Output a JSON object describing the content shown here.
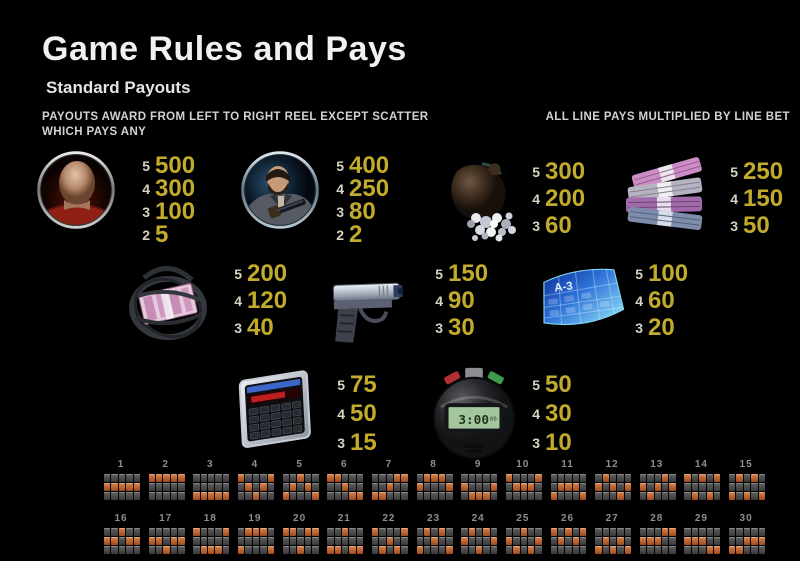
{
  "header": {
    "title": "Game Rules and Pays",
    "subtitle": "Standard Payouts",
    "note_line1": "PAYOUTS AWARD FROM LEFT TO RIGHT REEL EXCEPT SCATTER",
    "note_line2": "WHICH PAYS ANY",
    "note_right": "ALL LINE PAYS MULTIPLIED BY LINE BET"
  },
  "colors": {
    "background": "#000000",
    "value_gold": "#c2ab2b",
    "count_pale": "#d6d3c2",
    "payline_active": "#c4672f",
    "payline_inactive": "#4a4a4a"
  },
  "symbols": [
    {
      "name": "bald-hitman-head",
      "icon": "bald-head-icon",
      "pays": [
        {
          "count": "5",
          "value": "500"
        },
        {
          "count": "4",
          "value": "300"
        },
        {
          "count": "3",
          "value": "100"
        },
        {
          "count": "2",
          "value": "5"
        }
      ]
    },
    {
      "name": "bearded-man-with-gun",
      "icon": "man-with-gun-icon",
      "pays": [
        {
          "count": "5",
          "value": "400"
        },
        {
          "count": "4",
          "value": "250"
        },
        {
          "count": "3",
          "value": "80"
        },
        {
          "count": "2",
          "value": "2"
        }
      ]
    },
    {
      "name": "bag-of-diamonds",
      "icon": "diamond-bag-icon",
      "pays": [
        {
          "count": "5",
          "value": "300"
        },
        {
          "count": "4",
          "value": "200"
        },
        {
          "count": "3",
          "value": "60"
        }
      ]
    },
    {
      "name": "cash-stacks",
      "icon": "cash-stacks-icon",
      "pays": [
        {
          "count": "5",
          "value": "250"
        },
        {
          "count": "4",
          "value": "150"
        },
        {
          "count": "3",
          "value": "50"
        }
      ]
    },
    {
      "name": "wired-money-bundle",
      "icon": "money-bomb-icon",
      "pays": [
        {
          "count": "5",
          "value": "200"
        },
        {
          "count": "4",
          "value": "120"
        },
        {
          "count": "3",
          "value": "40"
        }
      ]
    },
    {
      "name": "pistol",
      "icon": "pistol-icon",
      "pays": [
        {
          "count": "5",
          "value": "150"
        },
        {
          "count": "4",
          "value": "90"
        },
        {
          "count": "3",
          "value": "30"
        }
      ]
    },
    {
      "name": "blue-keycard",
      "icon": "keycard-icon",
      "overlay_text": "A-3",
      "pays": [
        {
          "count": "5",
          "value": "100"
        },
        {
          "count": "4",
          "value": "60"
        },
        {
          "count": "3",
          "value": "20"
        }
      ]
    },
    {
      "name": "calculator",
      "icon": "calculator-icon",
      "pays": [
        {
          "count": "5",
          "value": "75"
        },
        {
          "count": "4",
          "value": "50"
        },
        {
          "count": "3",
          "value": "15"
        }
      ]
    },
    {
      "name": "detonator-timer",
      "icon": "timer-icon",
      "overlay_text": "3:00",
      "pays": [
        {
          "count": "5",
          "value": "50"
        },
        {
          "count": "4",
          "value": "30"
        },
        {
          "count": "3",
          "value": "10"
        }
      ]
    }
  ],
  "paylines": [
    {
      "number": "1",
      "pattern": [
        1,
        1,
        1,
        1,
        1
      ]
    },
    {
      "number": "2",
      "pattern": [
        0,
        0,
        0,
        0,
        0
      ]
    },
    {
      "number": "3",
      "pattern": [
        2,
        2,
        2,
        2,
        2
      ]
    },
    {
      "number": "4",
      "pattern": [
        0,
        1,
        2,
        1,
        0
      ]
    },
    {
      "number": "5",
      "pattern": [
        2,
        1,
        0,
        1,
        2
      ]
    },
    {
      "number": "6",
      "pattern": [
        0,
        0,
        1,
        2,
        2
      ]
    },
    {
      "number": "7",
      "pattern": [
        2,
        2,
        1,
        0,
        0
      ]
    },
    {
      "number": "8",
      "pattern": [
        1,
        0,
        0,
        0,
        1
      ]
    },
    {
      "number": "9",
      "pattern": [
        1,
        2,
        2,
        2,
        1
      ]
    },
    {
      "number": "10",
      "pattern": [
        0,
        1,
        1,
        1,
        0
      ]
    },
    {
      "number": "11",
      "pattern": [
        2,
        1,
        1,
        1,
        2
      ]
    },
    {
      "number": "12",
      "pattern": [
        1,
        0,
        1,
        2,
        1
      ]
    },
    {
      "number": "13",
      "pattern": [
        1,
        2,
        1,
        0,
        1
      ]
    },
    {
      "number": "14",
      "pattern": [
        0,
        2,
        0,
        2,
        0
      ]
    },
    {
      "number": "15",
      "pattern": [
        2,
        0,
        2,
        0,
        2
      ]
    },
    {
      "number": "16",
      "pattern": [
        1,
        1,
        0,
        1,
        1
      ]
    },
    {
      "number": "17",
      "pattern": [
        1,
        1,
        2,
        1,
        1
      ]
    },
    {
      "number": "18",
      "pattern": [
        0,
        2,
        2,
        2,
        0
      ]
    },
    {
      "number": "19",
      "pattern": [
        2,
        0,
        0,
        0,
        2
      ]
    },
    {
      "number": "20",
      "pattern": [
        0,
        0,
        2,
        0,
        0
      ]
    },
    {
      "number": "21",
      "pattern": [
        2,
        2,
        0,
        2,
        2
      ]
    },
    {
      "number": "22",
      "pattern": [
        0,
        2,
        1,
        2,
        0
      ]
    },
    {
      "number": "23",
      "pattern": [
        2,
        0,
        1,
        0,
        2
      ]
    },
    {
      "number": "24",
      "pattern": [
        1,
        0,
        2,
        0,
        1
      ]
    },
    {
      "number": "25",
      "pattern": [
        1,
        2,
        0,
        2,
        1
      ]
    },
    {
      "number": "26",
      "pattern": [
        0,
        1,
        0,
        1,
        0
      ]
    },
    {
      "number": "27",
      "pattern": [
        2,
        1,
        2,
        1,
        2
      ]
    },
    {
      "number": "28",
      "pattern": [
        1,
        1,
        1,
        0,
        0
      ]
    },
    {
      "number": "29",
      "pattern": [
        1,
        1,
        1,
        2,
        2
      ]
    },
    {
      "number": "30",
      "pattern": [
        2,
        2,
        1,
        1,
        1
      ]
    }
  ]
}
